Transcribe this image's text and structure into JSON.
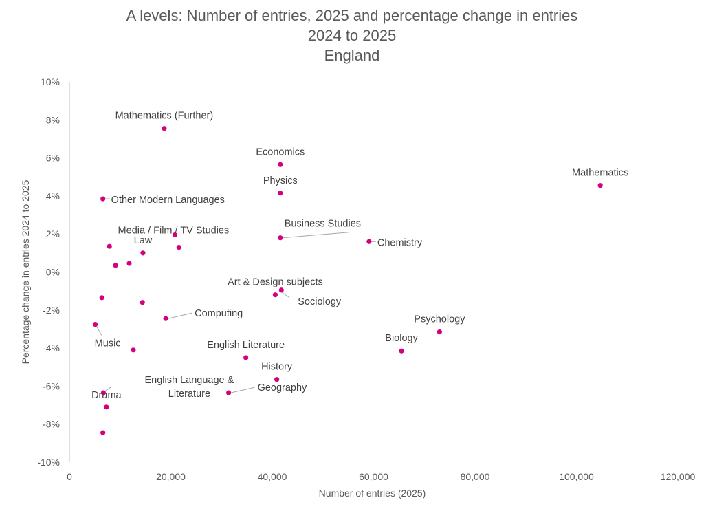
{
  "chart_data": {
    "type": "scatter",
    "title_lines": [
      "A levels: Number of entries, 2025 and percentage change in entries",
      "2024 to 2025",
      "England"
    ],
    "xlabel": "Number of entries (2025)",
    "ylabel": "Percentage change in entries 2024 to 2025",
    "xlim": [
      0,
      120000
    ],
    "ylim": [
      -10,
      10
    ],
    "x_ticks": [
      {
        "value": 0,
        "label": "0"
      },
      {
        "value": 20000,
        "label": "20,000"
      },
      {
        "value": 40000,
        "label": "40,000"
      },
      {
        "value": 60000,
        "label": "60,000"
      },
      {
        "value": 80000,
        "label": "80,000"
      },
      {
        "value": 100000,
        "label": "100,000"
      },
      {
        "value": 120000,
        "label": "120,000"
      }
    ],
    "y_ticks": [
      {
        "value": 10,
        "label": "10%"
      },
      {
        "value": 8,
        "label": "8%"
      },
      {
        "value": 6,
        "label": "6%"
      },
      {
        "value": 4,
        "label": "4%"
      },
      {
        "value": 2,
        "label": "2%"
      },
      {
        "value": 0,
        "label": "0%"
      },
      {
        "value": -2,
        "label": "-2%"
      },
      {
        "value": -4,
        "label": "-4%"
      },
      {
        "value": -6,
        "label": "-6%"
      },
      {
        "value": -8,
        "label": "-8%"
      },
      {
        "value": -10,
        "label": "-10%"
      }
    ],
    "grid": false,
    "marker_color": "#d6007f",
    "leader_color": "#a6a6a6",
    "points": [
      {
        "name": "Mathematics (Further)",
        "x": 18700,
        "y": 7.55,
        "label": "Mathematics (Further)",
        "label_pos": "above"
      },
      {
        "name": "Economics",
        "x": 41600,
        "y": 5.65,
        "label": "Economics",
        "label_pos": "above"
      },
      {
        "name": "Mathematics",
        "x": 104700,
        "y": 4.55,
        "label": "Mathematics",
        "label_pos": "above"
      },
      {
        "name": "Physics",
        "x": 41600,
        "y": 4.15,
        "label": "Physics",
        "label_pos": "above"
      },
      {
        "name": "Other Modern Languages",
        "x": 6600,
        "y": 3.85,
        "label": "Other Modern Languages",
        "label_pos": "right"
      },
      {
        "name": "Business Studies",
        "x": 41600,
        "y": 1.8,
        "label": "Business Studies",
        "label_pos": "leader-above-right"
      },
      {
        "name": "Chemistry",
        "x": 59100,
        "y": 1.6,
        "label": "Chemistry",
        "label_pos": "right"
      },
      {
        "name": "Media / Film / TV Studies",
        "x": 20800,
        "y": 1.95,
        "label": "Media / Film / TV Studies",
        "label_pos": "above-left"
      },
      {
        "name": "Law",
        "x": 14500,
        "y": 1.0,
        "label": "Law",
        "label_pos": "above"
      },
      {
        "name": "unlabelled-a",
        "x": 21600,
        "y": 1.3,
        "label": "",
        "label_pos": "none"
      },
      {
        "name": "unlabelled-b",
        "x": 7900,
        "y": 1.35,
        "label": "",
        "label_pos": "none"
      },
      {
        "name": "unlabelled-c",
        "x": 11800,
        "y": 0.45,
        "label": "",
        "label_pos": "none"
      },
      {
        "name": "unlabelled-d",
        "x": 9100,
        "y": 0.35,
        "label": "",
        "label_pos": "none"
      },
      {
        "name": "Art & Design subjects",
        "x": 40600,
        "y": -1.2,
        "label": "Art & Design subjects",
        "label_pos": "above"
      },
      {
        "name": "Sociology",
        "x": 41800,
        "y": -0.95,
        "label": "Sociology",
        "label_pos": "leader-below-right"
      },
      {
        "name": "unlabelled-e",
        "x": 6400,
        "y": -1.35,
        "label": "",
        "label_pos": "none"
      },
      {
        "name": "unlabelled-f",
        "x": 14400,
        "y": -1.6,
        "label": "",
        "label_pos": "none"
      },
      {
        "name": "Computing",
        "x": 19000,
        "y": -2.45,
        "label": "Computing",
        "label_pos": "leader-right"
      },
      {
        "name": "Music",
        "x": 5100,
        "y": -2.75,
        "label": "Music",
        "label_pos": "leader-below"
      },
      {
        "name": "Psychology",
        "x": 73000,
        "y": -3.15,
        "label": "Psychology",
        "label_pos": "above"
      },
      {
        "name": "Biology",
        "x": 65500,
        "y": -4.15,
        "label": "Biology",
        "label_pos": "above"
      },
      {
        "name": "unlabelled-g",
        "x": 12600,
        "y": -4.1,
        "label": "",
        "label_pos": "none"
      },
      {
        "name": "English Literature",
        "x": 34800,
        "y": -4.5,
        "label": "English Literature",
        "label_pos": "above"
      },
      {
        "name": "History",
        "x": 40900,
        "y": -5.65,
        "label": "History",
        "label_pos": "above"
      },
      {
        "name": "Geography",
        "x": 31400,
        "y": -6.35,
        "label": "Geography",
        "label_pos": "leader-right"
      },
      {
        "name": "English Language & Literature",
        "x": 6700,
        "y": -6.35,
        "label": "English Language & Literature",
        "label_pos": "leader-right-two-line"
      },
      {
        "name": "Drama",
        "x": 7300,
        "y": -7.1,
        "label": "Drama",
        "label_pos": "above-near"
      },
      {
        "name": "unlabelled-h",
        "x": 6600,
        "y": -8.45,
        "label": "",
        "label_pos": "none"
      }
    ]
  }
}
